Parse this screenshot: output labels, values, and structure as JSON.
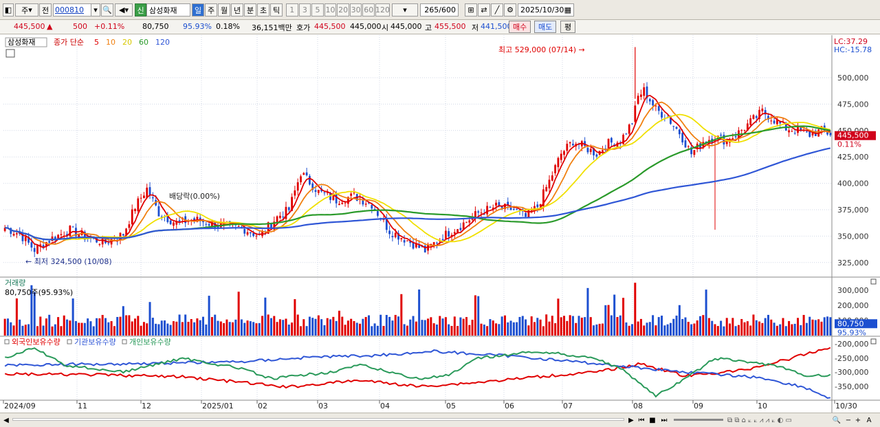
{
  "toolbar": {
    "period_labels": [
      "일",
      "주",
      "월",
      "년",
      "분",
      "초",
      "틱"
    ],
    "selected_period": "일",
    "minute_labels": [
      "1",
      "3",
      "5",
      "10",
      "20",
      "30",
      "60",
      "120"
    ],
    "mode1": "주",
    "mode2": "전",
    "code": "000810",
    "stock_name": "삼성화재",
    "badge": "신",
    "count": "265",
    "count_total": "/600",
    "date": "2025/10/30"
  },
  "quote": {
    "price": "445,500",
    "change": "500",
    "change_pct": "+0.11%",
    "volume": "80,750",
    "vol_ratio": "95.93%",
    "turnover_rate": "0.18%",
    "amount": "36,151백만",
    "bid_label": "호가",
    "bid": "445,500",
    "ask": "445,000",
    "open_label": "시",
    "open": "445,000",
    "high_label": "고",
    "high": "455,500",
    "low_label": "저",
    "low": "441,500",
    "buy_label": "매수",
    "sell_label": "매도",
    "avg_label": "평"
  },
  "price_panel": {
    "name_label": "삼성화재",
    "legend_prefix": "종가 단순",
    "ma": [
      {
        "period": "5",
        "color": "#e00000"
      },
      {
        "period": "10",
        "color": "#f08010"
      },
      {
        "period": "20",
        "color": "#f0e000"
      },
      {
        "period": "60",
        "color": "#2a9a2a"
      },
      {
        "period": "120",
        "color": "#2f56d6"
      }
    ],
    "lc": "LC:37.29",
    "hc": "HC:-15.78",
    "y_ticks": [
      "500,000",
      "475,000",
      "450,000",
      "425,000",
      "400,000",
      "375,000",
      "350,000",
      "325,000"
    ],
    "y_values": [
      500000,
      475000,
      450000,
      425000,
      400000,
      375000,
      350000,
      325000
    ],
    "current_price": "445,500",
    "current_pct": "0.11%",
    "high_note": "최고 529,000 (07/14)",
    "low_note": "최저 324,500 (10/08)",
    "dividend_note": "배당락(0.00%)"
  },
  "volume_panel": {
    "title": "거래량",
    "value_label": "80,750주(95.93%)",
    "y_ticks": [
      "300,000",
      "200,000",
      "100,000"
    ],
    "y_values": [
      300000,
      200000,
      100000
    ],
    "current": "80,750",
    "current_pct": "95.93%"
  },
  "holding_panel": {
    "legends": [
      {
        "label": "외국인보유수량",
        "color": "#e00000"
      },
      {
        "label": "기관보유수량",
        "color": "#2f56d6"
      },
      {
        "label": "개인보유수량",
        "color": "#2a9a5a"
      }
    ],
    "y_ticks": [
      "-200,000",
      "-250,000",
      "-300,000",
      "-350,000"
    ]
  },
  "x_axis": {
    "labels": [
      "2024/09",
      "11",
      "12",
      "2025/01",
      "02",
      "03",
      "04",
      "05",
      "06",
      "07",
      "08",
      "09",
      "10",
      "10/30"
    ]
  },
  "colors": {
    "up": "#e00000",
    "down": "#1c4fd0"
  }
}
